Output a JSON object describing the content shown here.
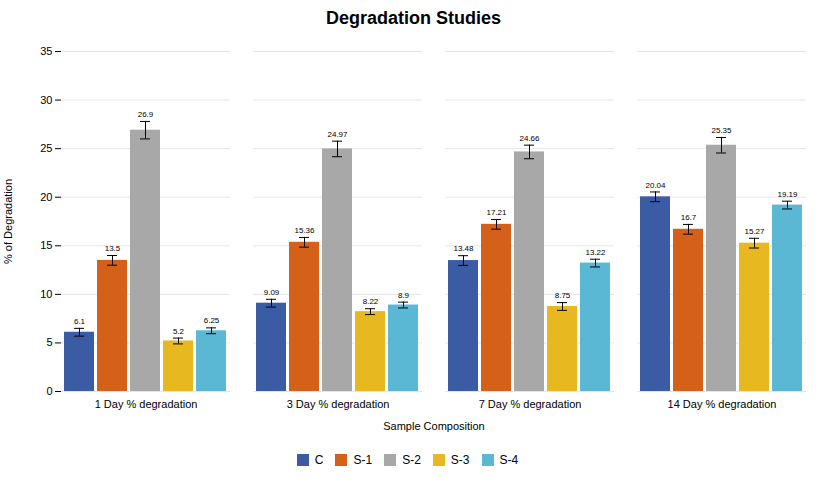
{
  "chart_data": {
    "type": "bar",
    "title": "Degradation Studies",
    "xlabel": "Sample Composition",
    "ylabel": "% of Degradation",
    "categories": [
      "1 Day % degradation",
      "3 Day % degradation",
      "7 Day % degradation",
      "14 Day % degradation"
    ],
    "series": [
      {
        "name": "C",
        "color": "#3B5BA5",
        "values": [
          6.1,
          9.09,
          13.48,
          20.04
        ],
        "errors": [
          0.4,
          0.4,
          0.5,
          0.5
        ]
      },
      {
        "name": "S-1",
        "color": "#D4601A",
        "values": [
          13.5,
          15.36,
          17.21,
          16.7
        ],
        "errors": [
          0.5,
          0.5,
          0.5,
          0.5
        ]
      },
      {
        "name": "S-2",
        "color": "#A8A8A8",
        "values": [
          26.9,
          24.97,
          24.66,
          25.35
        ],
        "errors": [
          0.9,
          0.8,
          0.7,
          0.8
        ]
      },
      {
        "name": "S-3",
        "color": "#E8B820",
        "values": [
          5.2,
          8.22,
          8.75,
          15.27
        ],
        "errors": [
          0.3,
          0.3,
          0.4,
          0.5
        ]
      },
      {
        "name": "S-4",
        "color": "#5BB8D4",
        "values": [
          6.25,
          8.9,
          13.22,
          19.19
        ],
        "errors": [
          0.3,
          0.3,
          0.4,
          0.4
        ]
      }
    ],
    "ylim": [
      0,
      35
    ],
    "yticks": [
      0,
      5,
      10,
      15,
      20,
      25,
      30,
      35
    ],
    "grid": true,
    "legend": "bottom",
    "data_labels": true
  }
}
